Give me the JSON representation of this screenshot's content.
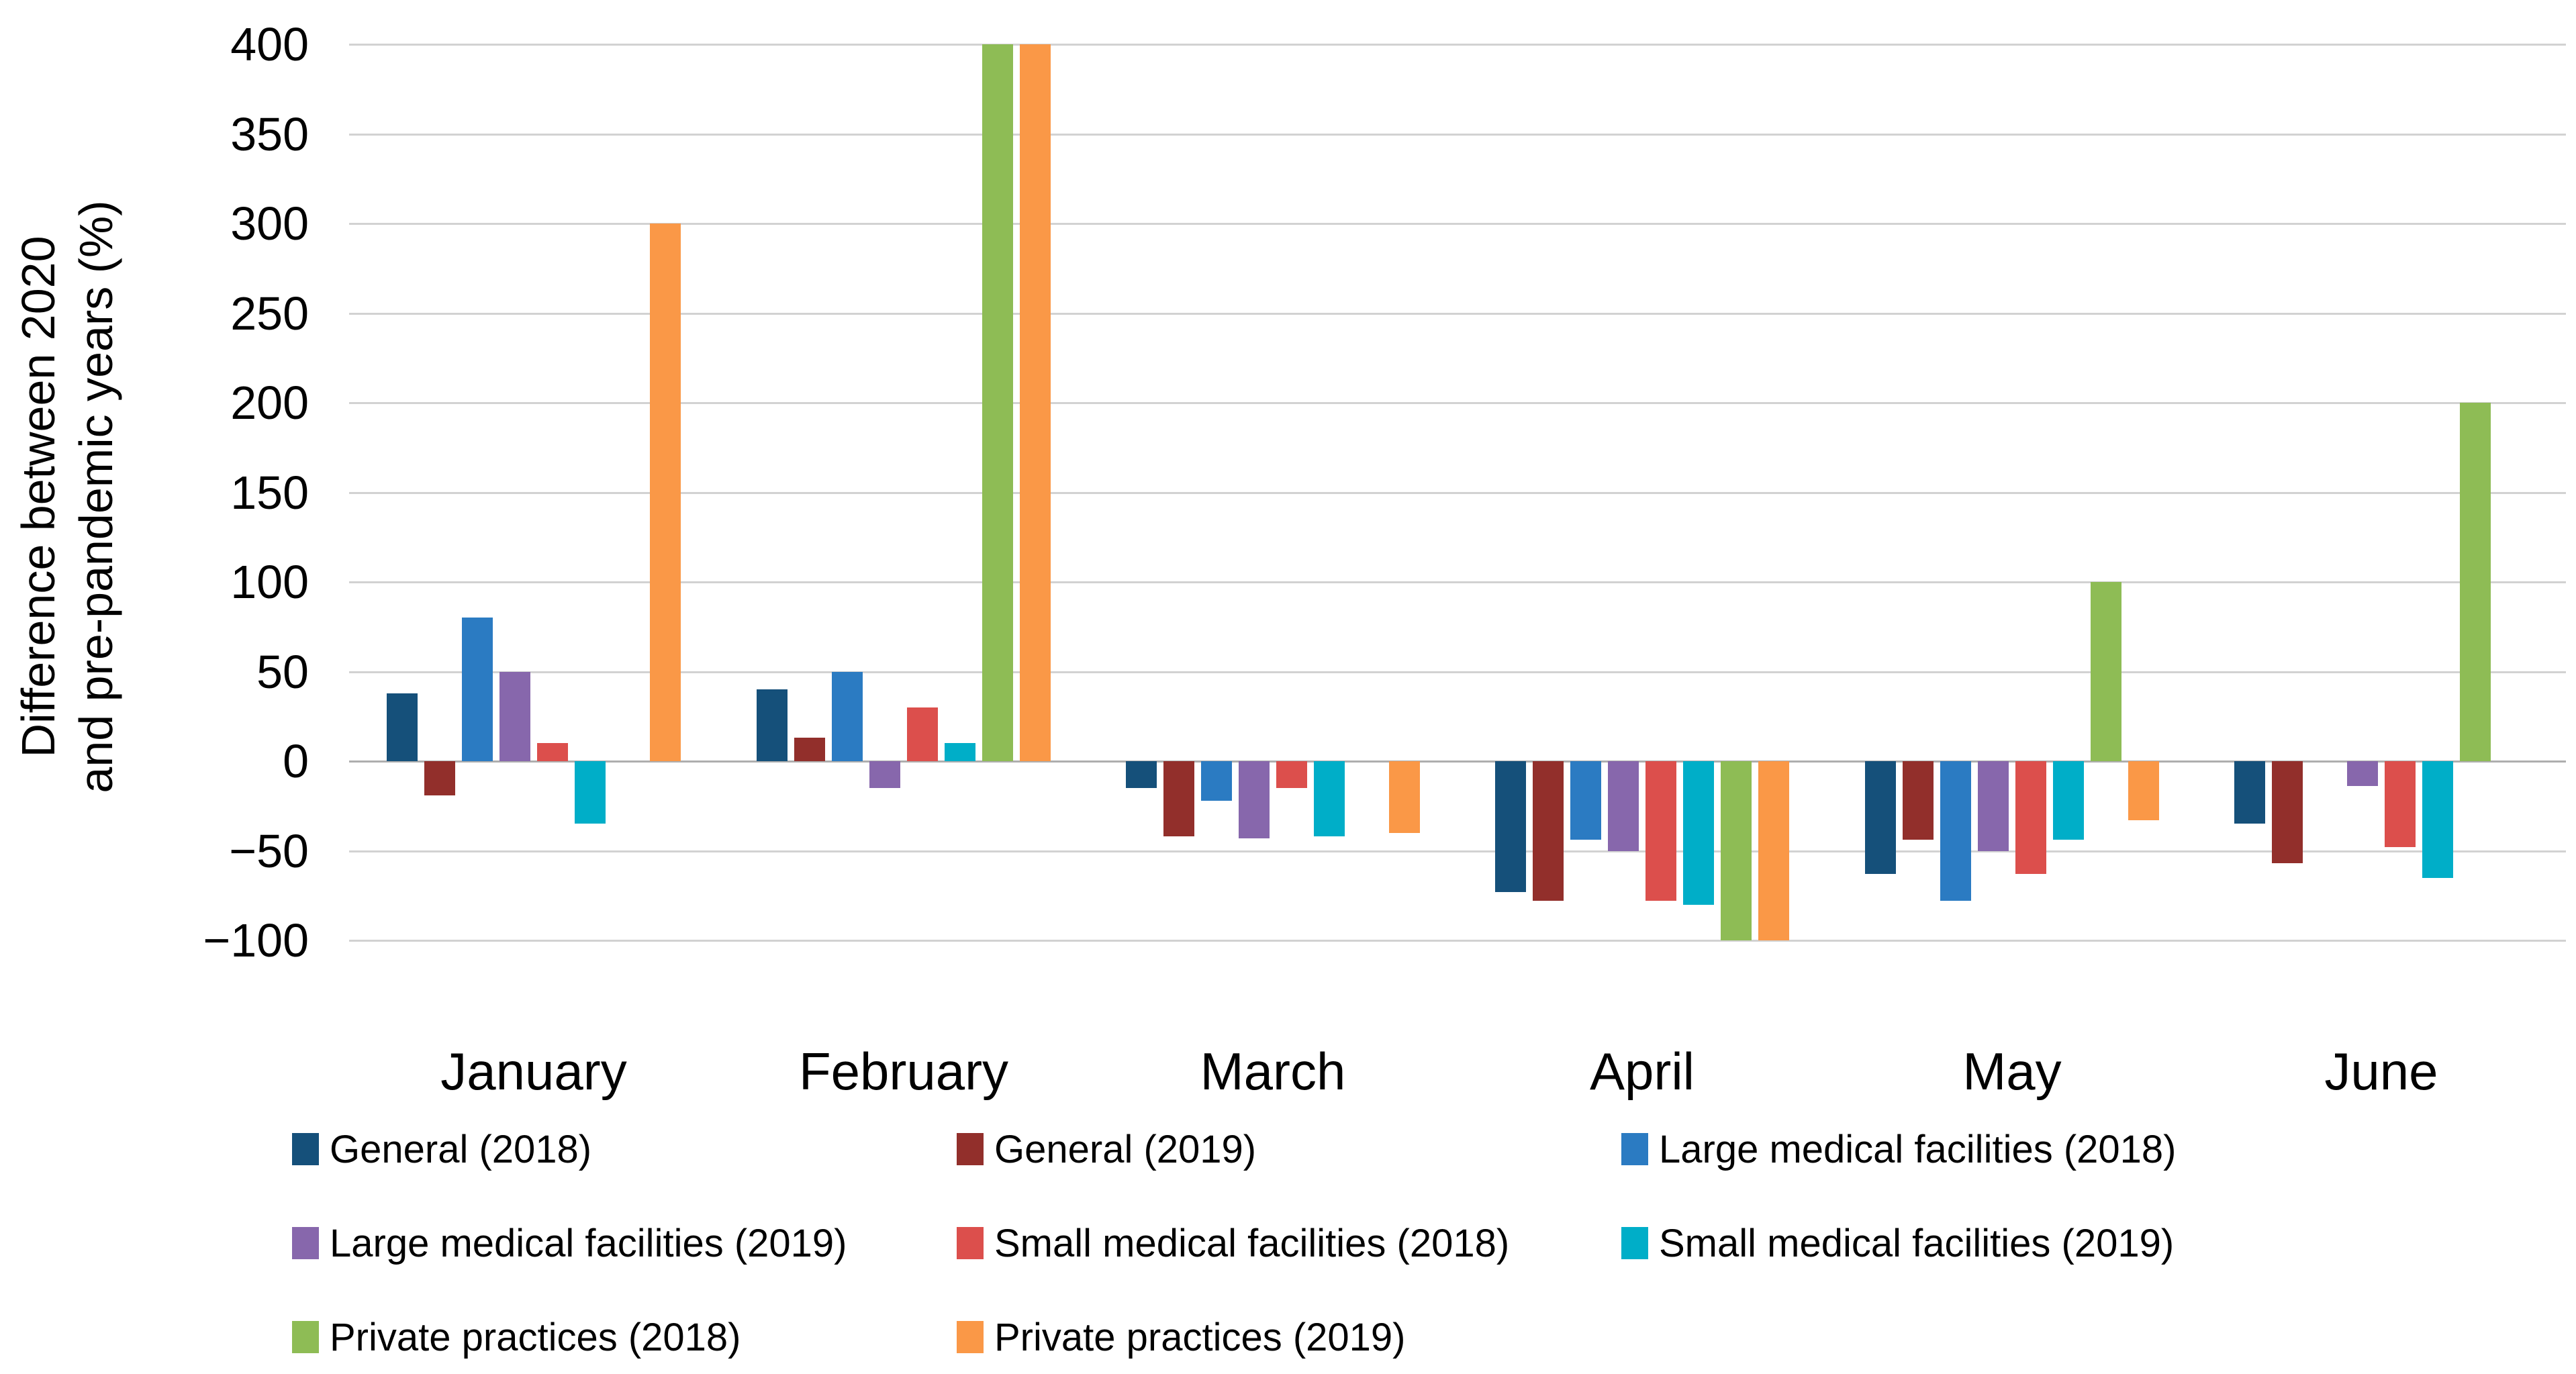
{
  "chart_data": {
    "type": "bar",
    "title": "",
    "ylabel": "Difference between 2020 and pre-pandemic years (%)",
    "ylabel_lines": [
      "Difference between 2020",
      "and pre-pandemic years (%)"
    ],
    "categories": [
      "January",
      "February",
      "March",
      "April",
      "May",
      "June"
    ],
    "ylim": [
      -100,
      400
    ],
    "y_tick_step": 50,
    "y_tick_values": [
      400,
      350,
      300,
      250,
      200,
      150,
      100,
      50,
      0,
      -50,
      -100
    ],
    "y_tick_labels": [
      "400",
      "350",
      "300",
      "250",
      "200",
      "150",
      "100",
      "50",
      "0",
      "−50",
      "−100"
    ],
    "grid": true,
    "legend_position": "bottom",
    "legend_columns": 3,
    "series": [
      {
        "name": "General (2018)",
        "color": "#15507A",
        "values": [
          38,
          40,
          -15,
          -73,
          -63,
          -35
        ]
      },
      {
        "name": "General (2019)",
        "color": "#922F2B",
        "values": [
          -19,
          13,
          -42,
          -78,
          -44,
          -57
        ]
      },
      {
        "name": "Large medical facilities (2018)",
        "color": "#2B7BC2",
        "values": [
          80,
          50,
          -22,
          -44,
          -78,
          null
        ]
      },
      {
        "name": "Large medical facilities (2019)",
        "color": "#8767AC",
        "values": [
          50,
          -15,
          -43,
          -50,
          -50,
          -14
        ]
      },
      {
        "name": "Small medical facilities (2018)",
        "color": "#DC4F4C",
        "values": [
          10,
          30,
          -15,
          -78,
          -63,
          -48
        ]
      },
      {
        "name": "Small medical facilities (2019)",
        "color": "#00AEC8",
        "values": [
          -35,
          10,
          -42,
          -80,
          -44,
          -65
        ]
      },
      {
        "name": "Private practices (2018)",
        "color": "#8EBC55",
        "values": [
          null,
          400,
          null,
          -100,
          100,
          200
        ],
        "clipped_at_max": [
          false,
          true,
          false,
          false,
          false,
          false
        ],
        "note": "February bar reaches top of axis (clipped at 400)"
      },
      {
        "name": "Private practices (2019)",
        "color": "#FA9847",
        "values": [
          300,
          400,
          -40,
          -100,
          -33,
          null
        ],
        "clipped_at_max": [
          false,
          true,
          false,
          false,
          false,
          false
        ],
        "note": "February bar reaches top of axis (clipped at 400)"
      }
    ]
  }
}
